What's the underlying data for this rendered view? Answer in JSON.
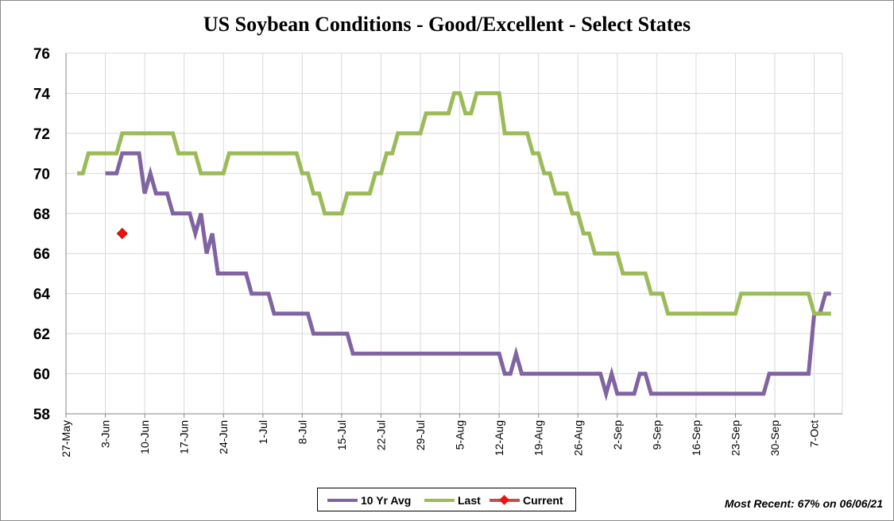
{
  "colors": {
    "avg10": "#8064a2",
    "last": "#9bbb59",
    "current": "#ee1111",
    "grid": "#d9d9d9",
    "axis": "#868686"
  },
  "footnote": "Most Recent: 67% on 06/06/21",
  "chart_data": {
    "type": "line",
    "title": "US Soybean Conditions - Good/Excellent - Select States",
    "xlabel": "",
    "ylabel": "",
    "ylim": [
      58,
      76
    ],
    "yticks": [
      58,
      60,
      62,
      64,
      66,
      68,
      70,
      72,
      74,
      76
    ],
    "xlim": [
      "2021-05-27",
      "2021-10-12"
    ],
    "xtick_labels": [
      "27-May",
      "3-Jun",
      "10-Jun",
      "17-Jun",
      "24-Jun",
      "1-Jul",
      "8-Jul",
      "15-Jul",
      "22-Jul",
      "29-Jul",
      "5-Aug",
      "12-Aug",
      "19-Aug",
      "26-Aug",
      "2-Sep",
      "9-Sep",
      "16-Sep",
      "23-Sep",
      "30-Sep",
      "7-Oct"
    ],
    "grid": true,
    "legend_position": "bottom",
    "series": [
      {
        "name": "10 Yr Avg",
        "color": "#8064a2",
        "points": [
          [
            "2021-06-03",
            70
          ],
          [
            "2021-06-05",
            70
          ],
          [
            "2021-06-06",
            71
          ],
          [
            "2021-06-09",
            71
          ],
          [
            "2021-06-10",
            69
          ],
          [
            "2021-06-11",
            70
          ],
          [
            "2021-06-12",
            69
          ],
          [
            "2021-06-14",
            69
          ],
          [
            "2021-06-15",
            68
          ],
          [
            "2021-06-18",
            68
          ],
          [
            "2021-06-19",
            67
          ],
          [
            "2021-06-20",
            68
          ],
          [
            "2021-06-21",
            66
          ],
          [
            "2021-06-22",
            67
          ],
          [
            "2021-06-23",
            65
          ],
          [
            "2021-06-28",
            65
          ],
          [
            "2021-06-29",
            64
          ],
          [
            "2021-07-02",
            64
          ],
          [
            "2021-07-03",
            63
          ],
          [
            "2021-07-09",
            63
          ],
          [
            "2021-07-10",
            62
          ],
          [
            "2021-07-16",
            62
          ],
          [
            "2021-07-17",
            61
          ],
          [
            "2021-08-12",
            61
          ],
          [
            "2021-08-13",
            60
          ],
          [
            "2021-08-14",
            60
          ],
          [
            "2021-08-15",
            61
          ],
          [
            "2021-08-16",
            60
          ],
          [
            "2021-08-30",
            60
          ],
          [
            "2021-08-31",
            59
          ],
          [
            "2021-09-01",
            60
          ],
          [
            "2021-09-02",
            59
          ],
          [
            "2021-09-05",
            59
          ],
          [
            "2021-09-06",
            60
          ],
          [
            "2021-09-07",
            60
          ],
          [
            "2021-09-08",
            59
          ],
          [
            "2021-09-28",
            59
          ],
          [
            "2021-09-29",
            60
          ],
          [
            "2021-10-06",
            60
          ],
          [
            "2021-10-07",
            63
          ],
          [
            "2021-10-08",
            63
          ],
          [
            "2021-10-09",
            64
          ],
          [
            "2021-10-10",
            64
          ]
        ]
      },
      {
        "name": "Last",
        "color": "#9bbb59",
        "points": [
          [
            "2021-05-29",
            70
          ],
          [
            "2021-05-30",
            70
          ],
          [
            "2021-05-31",
            71
          ],
          [
            "2021-06-02",
            71
          ],
          [
            "2021-06-05",
            71
          ],
          [
            "2021-06-06",
            72
          ],
          [
            "2021-06-15",
            72
          ],
          [
            "2021-06-16",
            71
          ],
          [
            "2021-06-19",
            71
          ],
          [
            "2021-06-20",
            70
          ],
          [
            "2021-06-24",
            70
          ],
          [
            "2021-06-25",
            71
          ],
          [
            "2021-07-07",
            71
          ],
          [
            "2021-07-08",
            70
          ],
          [
            "2021-07-09",
            70
          ],
          [
            "2021-07-10",
            69
          ],
          [
            "2021-07-11",
            69
          ],
          [
            "2021-07-12",
            68
          ],
          [
            "2021-07-15",
            68
          ],
          [
            "2021-07-16",
            69
          ],
          [
            "2021-07-20",
            69
          ],
          [
            "2021-07-21",
            70
          ],
          [
            "2021-07-22",
            70
          ],
          [
            "2021-07-23",
            71
          ],
          [
            "2021-07-24",
            71
          ],
          [
            "2021-07-25",
            72
          ],
          [
            "2021-07-29",
            72
          ],
          [
            "2021-07-30",
            73
          ],
          [
            "2021-08-03",
            73
          ],
          [
            "2021-08-04",
            74
          ],
          [
            "2021-08-05",
            74
          ],
          [
            "2021-08-06",
            73
          ],
          [
            "2021-08-07",
            73
          ],
          [
            "2021-08-08",
            74
          ],
          [
            "2021-08-12",
            74
          ],
          [
            "2021-08-13",
            72
          ],
          [
            "2021-08-17",
            72
          ],
          [
            "2021-08-18",
            71
          ],
          [
            "2021-08-19",
            71
          ],
          [
            "2021-08-20",
            70
          ],
          [
            "2021-08-21",
            70
          ],
          [
            "2021-08-22",
            69
          ],
          [
            "2021-08-24",
            69
          ],
          [
            "2021-08-25",
            68
          ],
          [
            "2021-08-26",
            68
          ],
          [
            "2021-08-27",
            67
          ],
          [
            "2021-08-28",
            67
          ],
          [
            "2021-08-29",
            66
          ],
          [
            "2021-09-02",
            66
          ],
          [
            "2021-09-03",
            65
          ],
          [
            "2021-09-07",
            65
          ],
          [
            "2021-09-08",
            64
          ],
          [
            "2021-09-10",
            64
          ],
          [
            "2021-09-11",
            63
          ],
          [
            "2021-09-23",
            63
          ],
          [
            "2021-09-24",
            64
          ],
          [
            "2021-10-06",
            64
          ],
          [
            "2021-10-07",
            63
          ],
          [
            "2021-10-10",
            63
          ]
        ]
      },
      {
        "name": "Current",
        "color": "#ee1111",
        "marker": "diamond",
        "points": [
          [
            "2021-06-06",
            67
          ]
        ]
      }
    ]
  }
}
